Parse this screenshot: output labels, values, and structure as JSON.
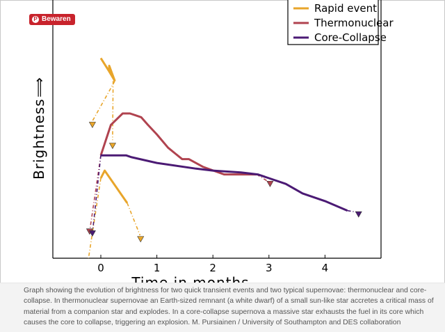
{
  "pin_button": {
    "label": "Bewaren",
    "icon": "pinterest-icon"
  },
  "caption": "Graph showing the evolution of brightness for two quick transient events and two typical supernovae: thermonuclear and core-collapse. In thermonuclear supernovae an Earth-sized remnant (a white dwarf) of a small sun-like star accretes a critical mass of material from a companion star and explodes. In a core-collapse supernova a massive star exhausts the fuel in its core which causes the core to collapse, triggering an explosion. M. Pursiainen / University of Southampton and DES collaboration",
  "chart_data": {
    "type": "line",
    "title": "",
    "xlabel": "Time in months",
    "ylabel": "Brightness",
    "ylabel_arrow": "⟹",
    "xlim": [
      -0.9,
      5.0
    ],
    "ylim": [
      0,
      100
    ],
    "x_ticks": [
      0,
      1,
      2,
      3,
      4
    ],
    "x_tick_labels": [
      "0",
      "1",
      "2",
      "3",
      "4"
    ],
    "legend": {
      "position": "top-right",
      "entries": [
        "Rapid event",
        "Thermonuclear",
        "Core-Collapse"
      ]
    },
    "series": [
      {
        "name": "Rapid event",
        "color": "#e8a52a",
        "segments": [
          {
            "solid": [
              [
                0.0,
                105
              ],
              [
                0.15,
                98
              ],
              [
                0.15,
                101
              ],
              [
                0.25,
                93
              ]
            ],
            "dashed": [
              [
                0.25,
                93
              ],
              [
                -0.15,
                72
              ]
            ],
            "marker": [
              -0.15,
              70
            ]
          },
          {
            "solid": [
              [
                0.15,
                98
              ],
              [
                0.25,
                93
              ]
            ],
            "dashed": [
              [
                0.22,
                93
              ],
              [
                0.21,
                62
              ]
            ],
            "marker": [
              0.21,
              59
            ]
          },
          {
            "solid": [
              [
                0.0,
                42
              ],
              [
                0.07,
                46
              ],
              [
                0.47,
                29
              ]
            ],
            "dashed": [
              [
                0.47,
                29
              ],
              [
                0.7,
                12
              ]
            ],
            "marker": [
              0.71,
              10
            ]
          },
          {
            "solid": [],
            "dashed": [
              [
                0.0,
                42
              ],
              [
                -0.22,
                0
              ]
            ],
            "marker": null
          }
        ]
      },
      {
        "name": "Thermonuclear",
        "color": "#b0434f",
        "solid": [
          [
            0.0,
            54
          ],
          [
            0.18,
            70
          ],
          [
            0.39,
            76
          ],
          [
            0.52,
            76
          ],
          [
            0.62,
            75
          ],
          [
            0.72,
            74
          ],
          [
            0.84,
            70
          ],
          [
            1.0,
            65
          ],
          [
            1.2,
            58
          ],
          [
            1.45,
            52
          ],
          [
            1.57,
            52
          ],
          [
            1.82,
            48
          ],
          [
            2.2,
            44
          ],
          [
            2.78,
            44
          ]
        ],
        "dashed": [
          [
            2.78,
            44
          ],
          [
            3.0,
            40
          ],
          [
            0.0,
            54
          ],
          [
            -0.2,
            14
          ]
        ],
        "markers": [
          [
            3.02,
            39
          ],
          [
            -0.2,
            14
          ]
        ]
      },
      {
        "name": "Core-Collapse",
        "color": "#4b1a74",
        "solid": [
          [
            0.0,
            54
          ],
          [
            0.45,
            54
          ],
          [
            0.55,
            53
          ],
          [
            1.0,
            50
          ],
          [
            1.7,
            47
          ],
          [
            2.0,
            46
          ],
          [
            2.5,
            45
          ],
          [
            2.8,
            44
          ],
          [
            3.0,
            42
          ],
          [
            3.3,
            39
          ],
          [
            3.6,
            34
          ],
          [
            4.0,
            30
          ],
          [
            4.4,
            25
          ]
        ],
        "dashed": [
          [
            4.4,
            25
          ],
          [
            4.6,
            24
          ],
          [
            0.0,
            54
          ],
          [
            -0.15,
            13
          ]
        ],
        "markers": [
          [
            4.6,
            23
          ],
          [
            -0.15,
            13
          ]
        ]
      }
    ]
  }
}
